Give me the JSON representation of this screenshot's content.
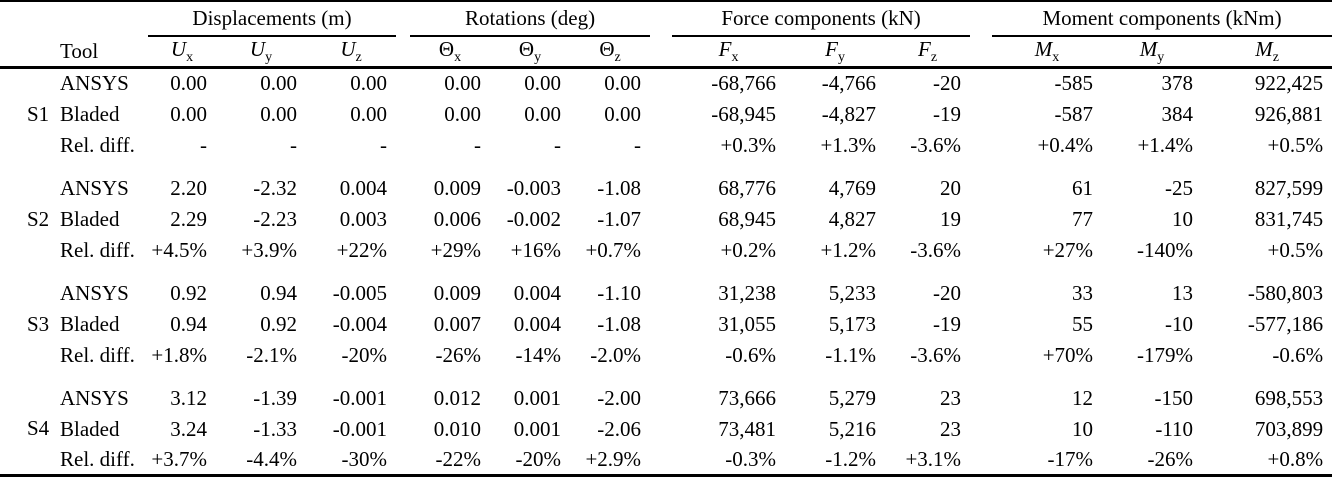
{
  "table": {
    "tool_header": "Tool",
    "col_groups": [
      {
        "key": "u",
        "label": "Displacements (m)",
        "italic_symbol": true,
        "cols": [
          {
            "sym": "U",
            "sub": "x"
          },
          {
            "sym": "U",
            "sub": "y"
          },
          {
            "sym": "U",
            "sub": "z"
          }
        ]
      },
      {
        "key": "theta",
        "label": "Rotations (deg)",
        "italic_symbol": false,
        "cols": [
          {
            "sym": "Θ",
            "sub": "x"
          },
          {
            "sym": "Θ",
            "sub": "y"
          },
          {
            "sym": "Θ",
            "sub": "z"
          }
        ]
      },
      {
        "key": "f",
        "label": "Force components (kN)",
        "italic_symbol": true,
        "cols": [
          {
            "sym": "F",
            "sub": "x"
          },
          {
            "sym": "F",
            "sub": "y"
          },
          {
            "sym": "F",
            "sub": "z"
          }
        ]
      },
      {
        "key": "m",
        "label": "Moment components (kNm)",
        "italic_symbol": true,
        "cols": [
          {
            "sym": "M",
            "sub": "x"
          },
          {
            "sym": "M",
            "sub": "y"
          },
          {
            "sym": "M",
            "sub": "z"
          }
        ]
      }
    ],
    "sections": [
      {
        "id": "S1",
        "rows": [
          {
            "tool": "ANSYS",
            "values": [
              "0.00",
              "0.00",
              "0.00",
              "0.00",
              "0.00",
              "0.00",
              "-68,766",
              "-4,766",
              "-20",
              "-585",
              "378",
              "922,425"
            ]
          },
          {
            "tool": "Bladed",
            "values": [
              "0.00",
              "0.00",
              "0.00",
              "0.00",
              "0.00",
              "0.00",
              "-68,945",
              "-4,827",
              "-19",
              "-587",
              "384",
              "926,881"
            ]
          },
          {
            "tool": "Rel. diff.",
            "values": [
              "-",
              "-",
              "-",
              "-",
              "-",
              "-",
              "+0.3%",
              "+1.3%",
              "-3.6%",
              "+0.4%",
              "+1.4%",
              "+0.5%"
            ]
          }
        ]
      },
      {
        "id": "S2",
        "rows": [
          {
            "tool": "ANSYS",
            "values": [
              "2.20",
              "-2.32",
              "0.004",
              "0.009",
              "-0.003",
              "-1.08",
              "68,776",
              "4,769",
              "20",
              "61",
              "-25",
              "827,599"
            ]
          },
          {
            "tool": "Bladed",
            "values": [
              "2.29",
              "-2.23",
              "0.003",
              "0.006",
              "-0.002",
              "-1.07",
              "68,945",
              "4,827",
              "19",
              "77",
              "10",
              "831,745"
            ]
          },
          {
            "tool": "Rel. diff.",
            "values": [
              "+4.5%",
              "+3.9%",
              "+22%",
              "+29%",
              "+16%",
              "+0.7%",
              "+0.2%",
              "+1.2%",
              "-3.6%",
              "+27%",
              "-140%",
              "+0.5%"
            ]
          }
        ]
      },
      {
        "id": "S3",
        "rows": [
          {
            "tool": "ANSYS",
            "values": [
              "0.92",
              "0.94",
              "-0.005",
              "0.009",
              "0.004",
              "-1.10",
              "31,238",
              "5,233",
              "-20",
              "33",
              "13",
              "-580,803"
            ]
          },
          {
            "tool": "Bladed",
            "values": [
              "0.94",
              "0.92",
              "-0.004",
              "0.007",
              "0.004",
              "-1.08",
              "31,055",
              "5,173",
              "-19",
              "55",
              "-10",
              "-577,186"
            ]
          },
          {
            "tool": "Rel. diff.",
            "values": [
              "+1.8%",
              "-2.1%",
              "-20%",
              "-26%",
              "-14%",
              "-2.0%",
              "-0.6%",
              "-1.1%",
              "-3.6%",
              "+70%",
              "-179%",
              "-0.6%"
            ]
          }
        ]
      },
      {
        "id": "S4",
        "rows": [
          {
            "tool": "ANSYS",
            "values": [
              "3.12",
              "-1.39",
              "-0.001",
              "0.012",
              "0.001",
              "-2.00",
              "73,666",
              "5,279",
              "23",
              "12",
              "-150",
              "698,553"
            ]
          },
          {
            "tool": "Bladed",
            "values": [
              "3.24",
              "-1.33",
              "-0.001",
              "0.010",
              "0.001",
              "-2.06",
              "73,481",
              "5,216",
              "23",
              "10",
              "-110",
              "703,899"
            ]
          },
          {
            "tool": "Rel. diff.",
            "values": [
              "+3.7%",
              "-4.4%",
              "-30%",
              "-22%",
              "-20%",
              "+2.9%",
              "-0.3%",
              "-1.2%",
              "+3.1%",
              "-17%",
              "-26%",
              "+0.8%"
            ]
          }
        ]
      }
    ]
  }
}
